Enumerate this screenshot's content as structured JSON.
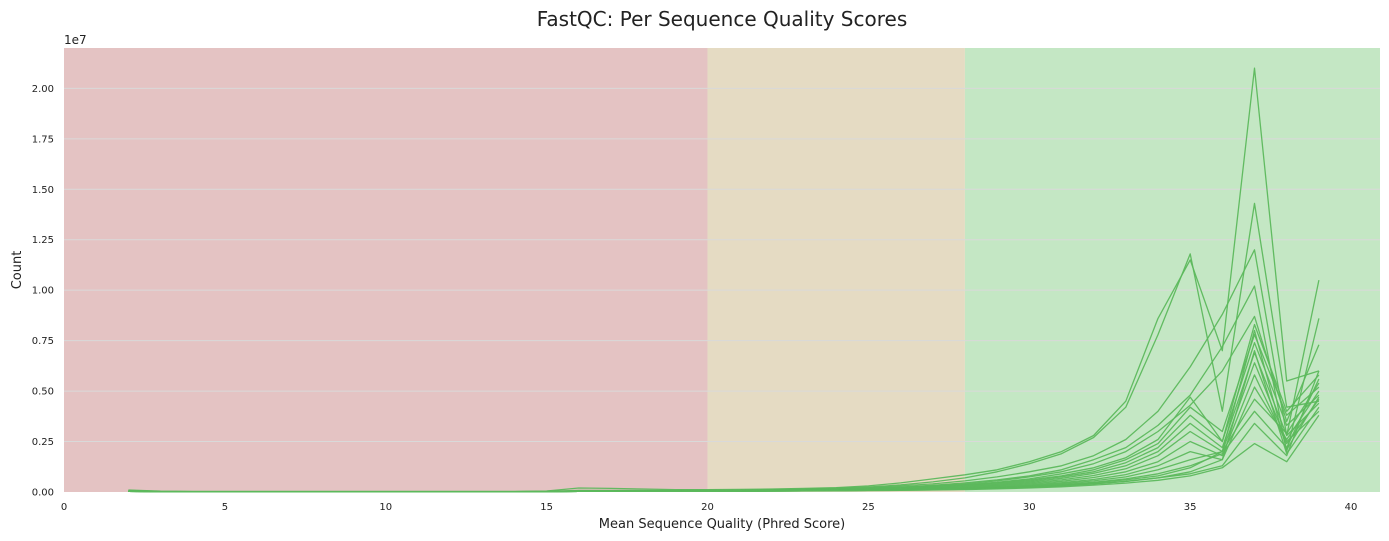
{
  "chart_data": {
    "type": "line",
    "title": "FastQC: Per Sequence Quality Scores",
    "xlabel": "Mean Sequence Quality (Phred Score)",
    "ylabel": "Count",
    "y_offset_label": "1e7",
    "y_scale": 10000000,
    "xlim": [
      0,
      40.9
    ],
    "ylim": [
      0,
      2.2
    ],
    "x_ticks": [
      0,
      5,
      10,
      15,
      20,
      25,
      30,
      35,
      40
    ],
    "y_ticks": [
      0,
      0.25,
      0.5,
      0.75,
      1.0,
      1.25,
      1.5,
      1.75,
      2.0
    ],
    "y_tick_labels": [
      "0.00",
      "0.25",
      "0.50",
      "0.75",
      "1.00",
      "1.25",
      "1.50",
      "1.75",
      "2.00"
    ],
    "grid": "horizontal",
    "legend": "none",
    "bands": [
      {
        "from": 0,
        "to": 20,
        "color": "#e4c3c3"
      },
      {
        "from": 20,
        "to": 28,
        "color": "#e5dbc3"
      },
      {
        "from": 28,
        "to": 40.9,
        "color": "#c4e7c4"
      }
    ],
    "line_color": "#5cb85c",
    "x": [
      2,
      3,
      4,
      5,
      6,
      7,
      8,
      9,
      10,
      11,
      12,
      13,
      14,
      15,
      16,
      17,
      18,
      19,
      20,
      21,
      22,
      23,
      24,
      25,
      26,
      27,
      28,
      29,
      30,
      31,
      32,
      33,
      34,
      35,
      36,
      37,
      38,
      39
    ],
    "series": [
      {
        "values": [
          0.01,
          0.004,
          0.003,
          0.003,
          0.003,
          0.003,
          0.003,
          0.003,
          0.003,
          0.003,
          0.003,
          0.003,
          0.003,
          0.005,
          0.02,
          0.018,
          0.015,
          0.012,
          0.012,
          0.013,
          0.015,
          0.018,
          0.022,
          0.03,
          0.045,
          0.065,
          0.085,
          0.11,
          0.15,
          0.2,
          0.28,
          0.45,
          0.86,
          1.15,
          0.7,
          2.1,
          0.55,
          0.6
        ]
      },
      {
        "values": [
          0.008,
          0.003,
          0.002,
          0.002,
          0.002,
          0.002,
          0.002,
          0.002,
          0.002,
          0.002,
          0.002,
          0.002,
          0.002,
          0.003,
          0.008,
          0.008,
          0.008,
          0.008,
          0.009,
          0.01,
          0.012,
          0.015,
          0.02,
          0.025,
          0.035,
          0.05,
          0.07,
          0.1,
          0.14,
          0.19,
          0.27,
          0.42,
          0.78,
          1.18,
          0.4,
          1.43,
          0.42,
          0.45
        ]
      },
      {
        "values": [
          0.006,
          0.002,
          0.002,
          0.002,
          0.002,
          0.002,
          0.002,
          0.002,
          0.002,
          0.002,
          0.002,
          0.002,
          0.002,
          0.003,
          0.006,
          0.006,
          0.006,
          0.007,
          0.008,
          0.009,
          0.011,
          0.014,
          0.017,
          0.022,
          0.03,
          0.04,
          0.055,
          0.075,
          0.1,
          0.13,
          0.18,
          0.26,
          0.4,
          0.62,
          0.88,
          1.2,
          0.28,
          1.05
        ]
      },
      {
        "values": [
          0.005,
          0.002,
          0.002,
          0.002,
          0.002,
          0.002,
          0.002,
          0.002,
          0.002,
          0.002,
          0.002,
          0.002,
          0.002,
          0.002,
          0.005,
          0.005,
          0.005,
          0.006,
          0.007,
          0.008,
          0.01,
          0.012,
          0.015,
          0.019,
          0.025,
          0.033,
          0.045,
          0.06,
          0.08,
          0.11,
          0.16,
          0.22,
          0.33,
          0.48,
          0.72,
          1.02,
          0.2,
          0.86
        ]
      },
      {
        "values": [
          0.005,
          0.002,
          0.002,
          0.002,
          0.002,
          0.002,
          0.002,
          0.002,
          0.002,
          0.002,
          0.002,
          0.002,
          0.002,
          0.002,
          0.004,
          0.004,
          0.005,
          0.006,
          0.007,
          0.008,
          0.01,
          0.012,
          0.015,
          0.019,
          0.024,
          0.03,
          0.04,
          0.055,
          0.075,
          0.1,
          0.14,
          0.2,
          0.3,
          0.43,
          0.6,
          0.87,
          0.35,
          0.73
        ]
      },
      {
        "values": [
          0.004,
          0.002,
          0.002,
          0.002,
          0.002,
          0.002,
          0.002,
          0.002,
          0.002,
          0.002,
          0.002,
          0.002,
          0.002,
          0.002,
          0.004,
          0.004,
          0.005,
          0.006,
          0.007,
          0.008,
          0.009,
          0.011,
          0.014,
          0.017,
          0.022,
          0.028,
          0.036,
          0.048,
          0.065,
          0.09,
          0.12,
          0.17,
          0.26,
          0.47,
          0.25,
          0.83,
          0.4,
          0.58
        ]
      },
      {
        "values": [
          0.004,
          0.002,
          0.002,
          0.002,
          0.002,
          0.002,
          0.002,
          0.002,
          0.002,
          0.002,
          0.002,
          0.002,
          0.002,
          0.002,
          0.004,
          0.004,
          0.005,
          0.005,
          0.006,
          0.007,
          0.009,
          0.011,
          0.013,
          0.016,
          0.02,
          0.026,
          0.034,
          0.045,
          0.06,
          0.08,
          0.11,
          0.16,
          0.24,
          0.42,
          0.3,
          0.78,
          0.38,
          0.52
        ]
      },
      {
        "values": [
          0.004,
          0.002,
          0.002,
          0.002,
          0.002,
          0.002,
          0.002,
          0.002,
          0.002,
          0.002,
          0.002,
          0.002,
          0.002,
          0.002,
          0.004,
          0.004,
          0.004,
          0.005,
          0.006,
          0.007,
          0.008,
          0.01,
          0.012,
          0.015,
          0.019,
          0.024,
          0.031,
          0.041,
          0.055,
          0.075,
          0.1,
          0.145,
          0.22,
          0.38,
          0.25,
          0.74,
          0.33,
          0.48
        ]
      },
      {
        "values": [
          0.003,
          0.002,
          0.002,
          0.002,
          0.002,
          0.002,
          0.002,
          0.002,
          0.002,
          0.002,
          0.002,
          0.002,
          0.002,
          0.002,
          0.003,
          0.003,
          0.004,
          0.005,
          0.006,
          0.007,
          0.008,
          0.009,
          0.011,
          0.014,
          0.017,
          0.022,
          0.028,
          0.037,
          0.05,
          0.068,
          0.092,
          0.13,
          0.2,
          0.34,
          0.22,
          0.69,
          0.28,
          0.44
        ]
      },
      {
        "values": [
          0.003,
          0.002,
          0.002,
          0.002,
          0.002,
          0.002,
          0.002,
          0.002,
          0.002,
          0.002,
          0.002,
          0.002,
          0.002,
          0.002,
          0.003,
          0.003,
          0.004,
          0.004,
          0.005,
          0.006,
          0.007,
          0.008,
          0.01,
          0.012,
          0.015,
          0.019,
          0.025,
          0.033,
          0.045,
          0.06,
          0.082,
          0.115,
          0.18,
          0.3,
          0.2,
          0.64,
          0.25,
          0.4
        ]
      },
      {
        "values": [
          0.003,
          0.002,
          0.002,
          0.002,
          0.002,
          0.002,
          0.002,
          0.002,
          0.002,
          0.002,
          0.002,
          0.002,
          0.002,
          0.002,
          0.003,
          0.003,
          0.003,
          0.004,
          0.005,
          0.006,
          0.007,
          0.008,
          0.009,
          0.011,
          0.014,
          0.018,
          0.023,
          0.03,
          0.04,
          0.053,
          0.072,
          0.1,
          0.15,
          0.25,
          0.18,
          0.58,
          0.24,
          0.46
        ]
      },
      {
        "values": [
          0.003,
          0.002,
          0.002,
          0.002,
          0.002,
          0.002,
          0.002,
          0.002,
          0.002,
          0.002,
          0.002,
          0.002,
          0.002,
          0.002,
          0.003,
          0.003,
          0.003,
          0.004,
          0.005,
          0.005,
          0.006,
          0.007,
          0.008,
          0.01,
          0.013,
          0.016,
          0.02,
          0.026,
          0.035,
          0.046,
          0.062,
          0.086,
          0.13,
          0.2,
          0.16,
          0.52,
          0.26,
          0.5
        ]
      },
      {
        "values": [
          0.003,
          0.002,
          0.002,
          0.002,
          0.002,
          0.002,
          0.002,
          0.002,
          0.002,
          0.002,
          0.002,
          0.002,
          0.002,
          0.002,
          0.003,
          0.003,
          0.003,
          0.004,
          0.004,
          0.005,
          0.006,
          0.007,
          0.008,
          0.01,
          0.012,
          0.015,
          0.019,
          0.024,
          0.031,
          0.041,
          0.055,
          0.075,
          0.11,
          0.16,
          0.2,
          0.46,
          0.29,
          0.54
        ]
      },
      {
        "values": [
          0.003,
          0.002,
          0.002,
          0.002,
          0.002,
          0.002,
          0.002,
          0.002,
          0.002,
          0.002,
          0.002,
          0.002,
          0.002,
          0.002,
          0.003,
          0.003,
          0.003,
          0.003,
          0.004,
          0.005,
          0.005,
          0.006,
          0.007,
          0.009,
          0.011,
          0.014,
          0.017,
          0.022,
          0.028,
          0.036,
          0.048,
          0.065,
          0.09,
          0.13,
          0.19,
          0.4,
          0.22,
          0.56
        ]
      },
      {
        "values": [
          0.003,
          0.002,
          0.002,
          0.002,
          0.002,
          0.002,
          0.002,
          0.002,
          0.002,
          0.002,
          0.002,
          0.002,
          0.002,
          0.002,
          0.003,
          0.003,
          0.003,
          0.003,
          0.004,
          0.004,
          0.005,
          0.006,
          0.007,
          0.008,
          0.01,
          0.012,
          0.015,
          0.019,
          0.024,
          0.031,
          0.04,
          0.053,
          0.07,
          0.09,
          0.13,
          0.34,
          0.18,
          0.6
        ]
      },
      {
        "values": [
          0.003,
          0.002,
          0.002,
          0.002,
          0.002,
          0.002,
          0.002,
          0.002,
          0.002,
          0.002,
          0.002,
          0.002,
          0.002,
          0.002,
          0.003,
          0.003,
          0.003,
          0.003,
          0.004,
          0.004,
          0.005,
          0.006,
          0.007,
          0.008,
          0.01,
          0.012,
          0.015,
          0.02,
          0.026,
          0.034,
          0.045,
          0.06,
          0.08,
          0.12,
          0.2,
          0.8,
          0.21,
          0.47
        ]
      },
      {
        "values": [
          0.003,
          0.002,
          0.002,
          0.002,
          0.002,
          0.002,
          0.002,
          0.002,
          0.002,
          0.002,
          0.002,
          0.002,
          0.002,
          0.002,
          0.003,
          0.003,
          0.003,
          0.003,
          0.004,
          0.004,
          0.005,
          0.006,
          0.007,
          0.008,
          0.009,
          0.011,
          0.014,
          0.018,
          0.023,
          0.03,
          0.04,
          0.052,
          0.07,
          0.1,
          0.16,
          0.7,
          0.19,
          0.42
        ]
      },
      {
        "values": [
          0.003,
          0.002,
          0.002,
          0.002,
          0.002,
          0.002,
          0.002,
          0.002,
          0.002,
          0.002,
          0.002,
          0.002,
          0.002,
          0.002,
          0.003,
          0.003,
          0.003,
          0.003,
          0.003,
          0.004,
          0.004,
          0.005,
          0.006,
          0.007,
          0.008,
          0.01,
          0.012,
          0.016,
          0.02,
          0.026,
          0.034,
          0.044,
          0.058,
          0.08,
          0.12,
          0.24,
          0.15,
          0.38
        ]
      }
    ]
  }
}
